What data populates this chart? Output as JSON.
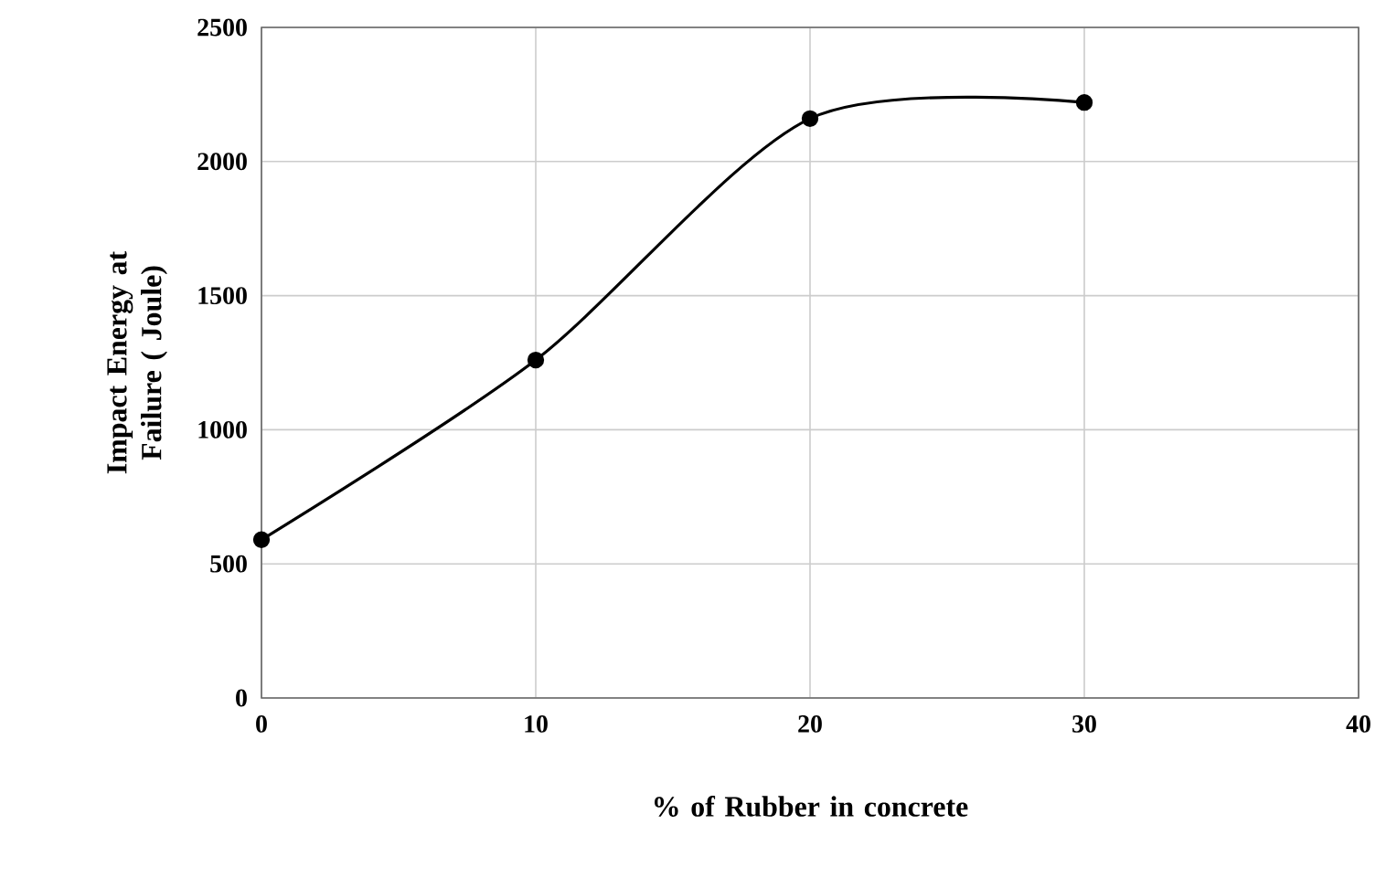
{
  "chart_data": {
    "type": "line",
    "xlabel": "% of Rubber in concrete",
    "ylabel": "Impact Energy at Failure ( Joule)",
    "x": [
      0,
      10,
      20,
      30
    ],
    "series": [
      {
        "color": "#000000",
        "values": [
          590,
          1260,
          2160,
          2220
        ]
      }
    ],
    "xlim": [
      0,
      40
    ],
    "xticks": [
      0,
      10,
      20,
      30,
      40
    ],
    "ylim": [
      0,
      2500
    ],
    "yticks": [
      0,
      500,
      1000,
      1500,
      2000,
      2500
    ],
    "grid": true,
    "marker": "circle",
    "line_style": "solid"
  }
}
